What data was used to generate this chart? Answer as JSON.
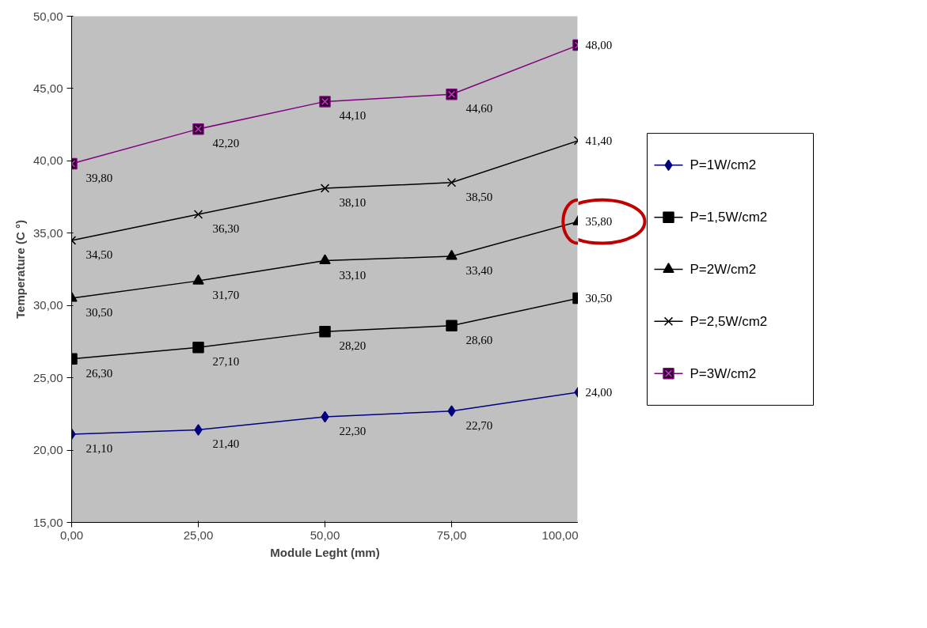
{
  "chart_data": {
    "type": "line",
    "xlabel": "Module Leght (mm)",
    "ylabel": "Temperature (C °)",
    "x": [
      0,
      25,
      50,
      75,
      100
    ],
    "xlim": [
      0,
      100
    ],
    "ylim": [
      15,
      50
    ],
    "xticks": [
      {
        "value": 0,
        "label": "0,00"
      },
      {
        "value": 25,
        "label": "25,00"
      },
      {
        "value": 50,
        "label": "50,00"
      },
      {
        "value": 75,
        "label": "75,00"
      },
      {
        "value": 100,
        "label": "100,00"
      }
    ],
    "yticks": [
      {
        "value": 15,
        "label": "15,00"
      },
      {
        "value": 20,
        "label": "20,00"
      },
      {
        "value": 25,
        "label": "25,00"
      },
      {
        "value": 30,
        "label": "30,00"
      },
      {
        "value": 35,
        "label": "35,00"
      },
      {
        "value": 40,
        "label": "40,00"
      },
      {
        "value": 45,
        "label": "45,00"
      },
      {
        "value": 50,
        "label": "50,00"
      }
    ],
    "grid": false,
    "legend": "right",
    "series": [
      {
        "name": "P=1W/cm2",
        "color": "#000080",
        "marker": "diamond",
        "values": [
          21.1,
          21.4,
          22.3,
          22.7,
          24.0
        ],
        "value_labels": [
          "21,10",
          "21,40",
          "22,30",
          "22,70",
          "24,00"
        ]
      },
      {
        "name": "P=1,5W/cm2",
        "color": "#000000",
        "marker": "square",
        "values": [
          26.3,
          27.1,
          28.2,
          28.6,
          30.5
        ],
        "value_labels": [
          "26,30",
          "27,10",
          "28,20",
          "28,60",
          "30,50"
        ]
      },
      {
        "name": "P=2W/cm2",
        "color": "#000000",
        "marker": "triangle",
        "values": [
          30.5,
          31.7,
          33.1,
          33.4,
          35.8
        ],
        "value_labels": [
          "30,50",
          "31,70",
          "33,10",
          "33,40",
          "35,80"
        ]
      },
      {
        "name": "P=2,5W/cm2",
        "color": "#000000",
        "marker": "cross",
        "values": [
          34.5,
          36.3,
          38.1,
          38.5,
          41.4
        ],
        "value_labels": [
          "34,50",
          "36,30",
          "38,10",
          "38,50",
          "41,40"
        ]
      },
      {
        "name": "P=3W/cm2",
        "color": "#800080",
        "marker": "square",
        "values": [
          39.8,
          42.2,
          44.1,
          44.6,
          48.0
        ],
        "value_labels": [
          "39,80",
          "42,20",
          "44,10",
          "44,60",
          "48,00"
        ]
      }
    ]
  }
}
